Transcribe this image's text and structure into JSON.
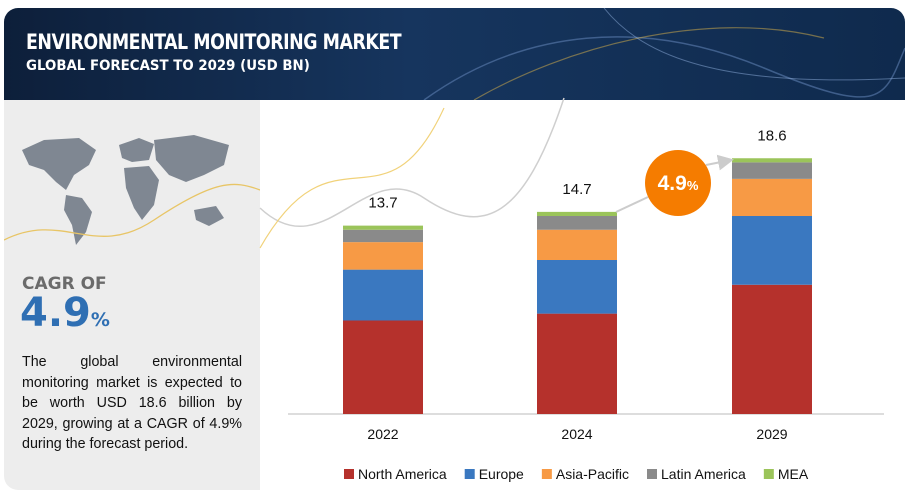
{
  "header": {
    "title": "ENVIRONMENTAL MONITORING MARKET",
    "subtitle": "GLOBAL FORECAST TO 2029 (USD BN)"
  },
  "sidebar": {
    "cagr_label": "CAGR OF",
    "cagr_number": "4.9",
    "cagr_unit": "%",
    "description": "The global environmental monitoring market is expected to be worth USD 18.6 billion by 2029, growing at a CAGR of 4.9% during the forecast period."
  },
  "chart_data": {
    "type": "stacked_bar",
    "categories": [
      "2022",
      "2024",
      "2029"
    ],
    "series": [
      {
        "name": "North America",
        "color": "#b5312c",
        "values": [
          6.8,
          7.3,
          9.4
        ]
      },
      {
        "name": "Europe",
        "color": "#3a78c0",
        "values": [
          3.7,
          3.9,
          5.0
        ]
      },
      {
        "name": "Asia-Pacific",
        "color": "#f79a45",
        "values": [
          2.0,
          2.2,
          2.7
        ]
      },
      {
        "name": "Latin America",
        "color": "#8a8a8a",
        "values": [
          0.9,
          1.0,
          1.2
        ]
      },
      {
        "name": "MEA",
        "color": "#9bc45a",
        "values": [
          0.3,
          0.3,
          0.3
        ]
      }
    ],
    "totals": [
      13.7,
      14.7,
      18.6
    ],
    "cagr_badge": {
      "number": "4.9",
      "unit": "%",
      "color": "#f57c00"
    },
    "ylim": [
      0,
      20
    ],
    "legend": "bottom"
  }
}
